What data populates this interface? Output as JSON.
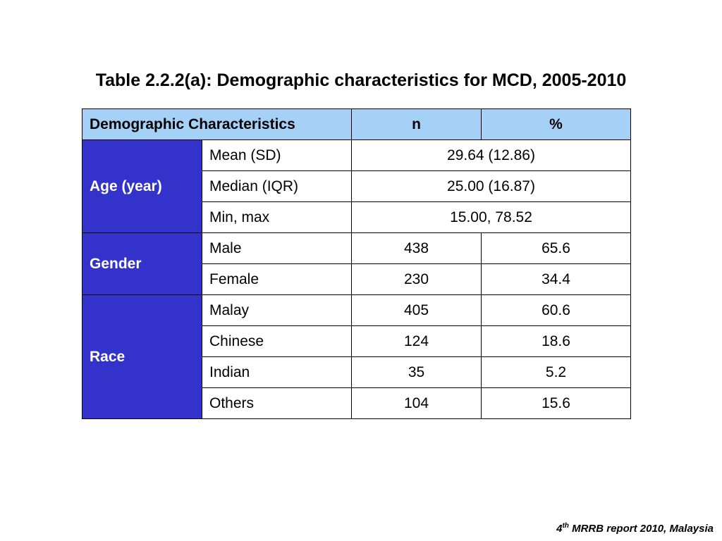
{
  "title": "Table 2.2.2(a): Demographic characteristics for MCD, 2005-2010",
  "table": {
    "headers": [
      "Demographic Characteristics",
      "n",
      "%"
    ],
    "groups": [
      {
        "label": "Age (year)",
        "rows": [
          {
            "label": "Mean (SD)",
            "value": "29.64 (12.86)"
          },
          {
            "label": "Median (IQR)",
            "value": "25.00 (16.87)"
          },
          {
            "label": "Min, max",
            "value": "15.00, 78.52"
          }
        ]
      },
      {
        "label": "Gender",
        "rows": [
          {
            "label": "Male",
            "n": "438",
            "pct": "65.6"
          },
          {
            "label": "Female",
            "n": "230",
            "pct": "34.4"
          }
        ]
      },
      {
        "label": "Race",
        "rows": [
          {
            "label": "Malay",
            "n": "405",
            "pct": "60.6"
          },
          {
            "label": "Chinese",
            "n": "124",
            "pct": "18.6"
          },
          {
            "label": "Indian",
            "n": "35",
            "pct": "5.2"
          },
          {
            "label": "Others",
            "n": "104",
            "pct": "15.6"
          }
        ]
      }
    ]
  },
  "footer": {
    "number": "4",
    "superscript": "th",
    "text": " MRRB report 2010, Malaysia"
  },
  "colors": {
    "header_bg": "#a6d1f7",
    "group_bg": "#3333cc",
    "group_text": "#ffffff"
  }
}
